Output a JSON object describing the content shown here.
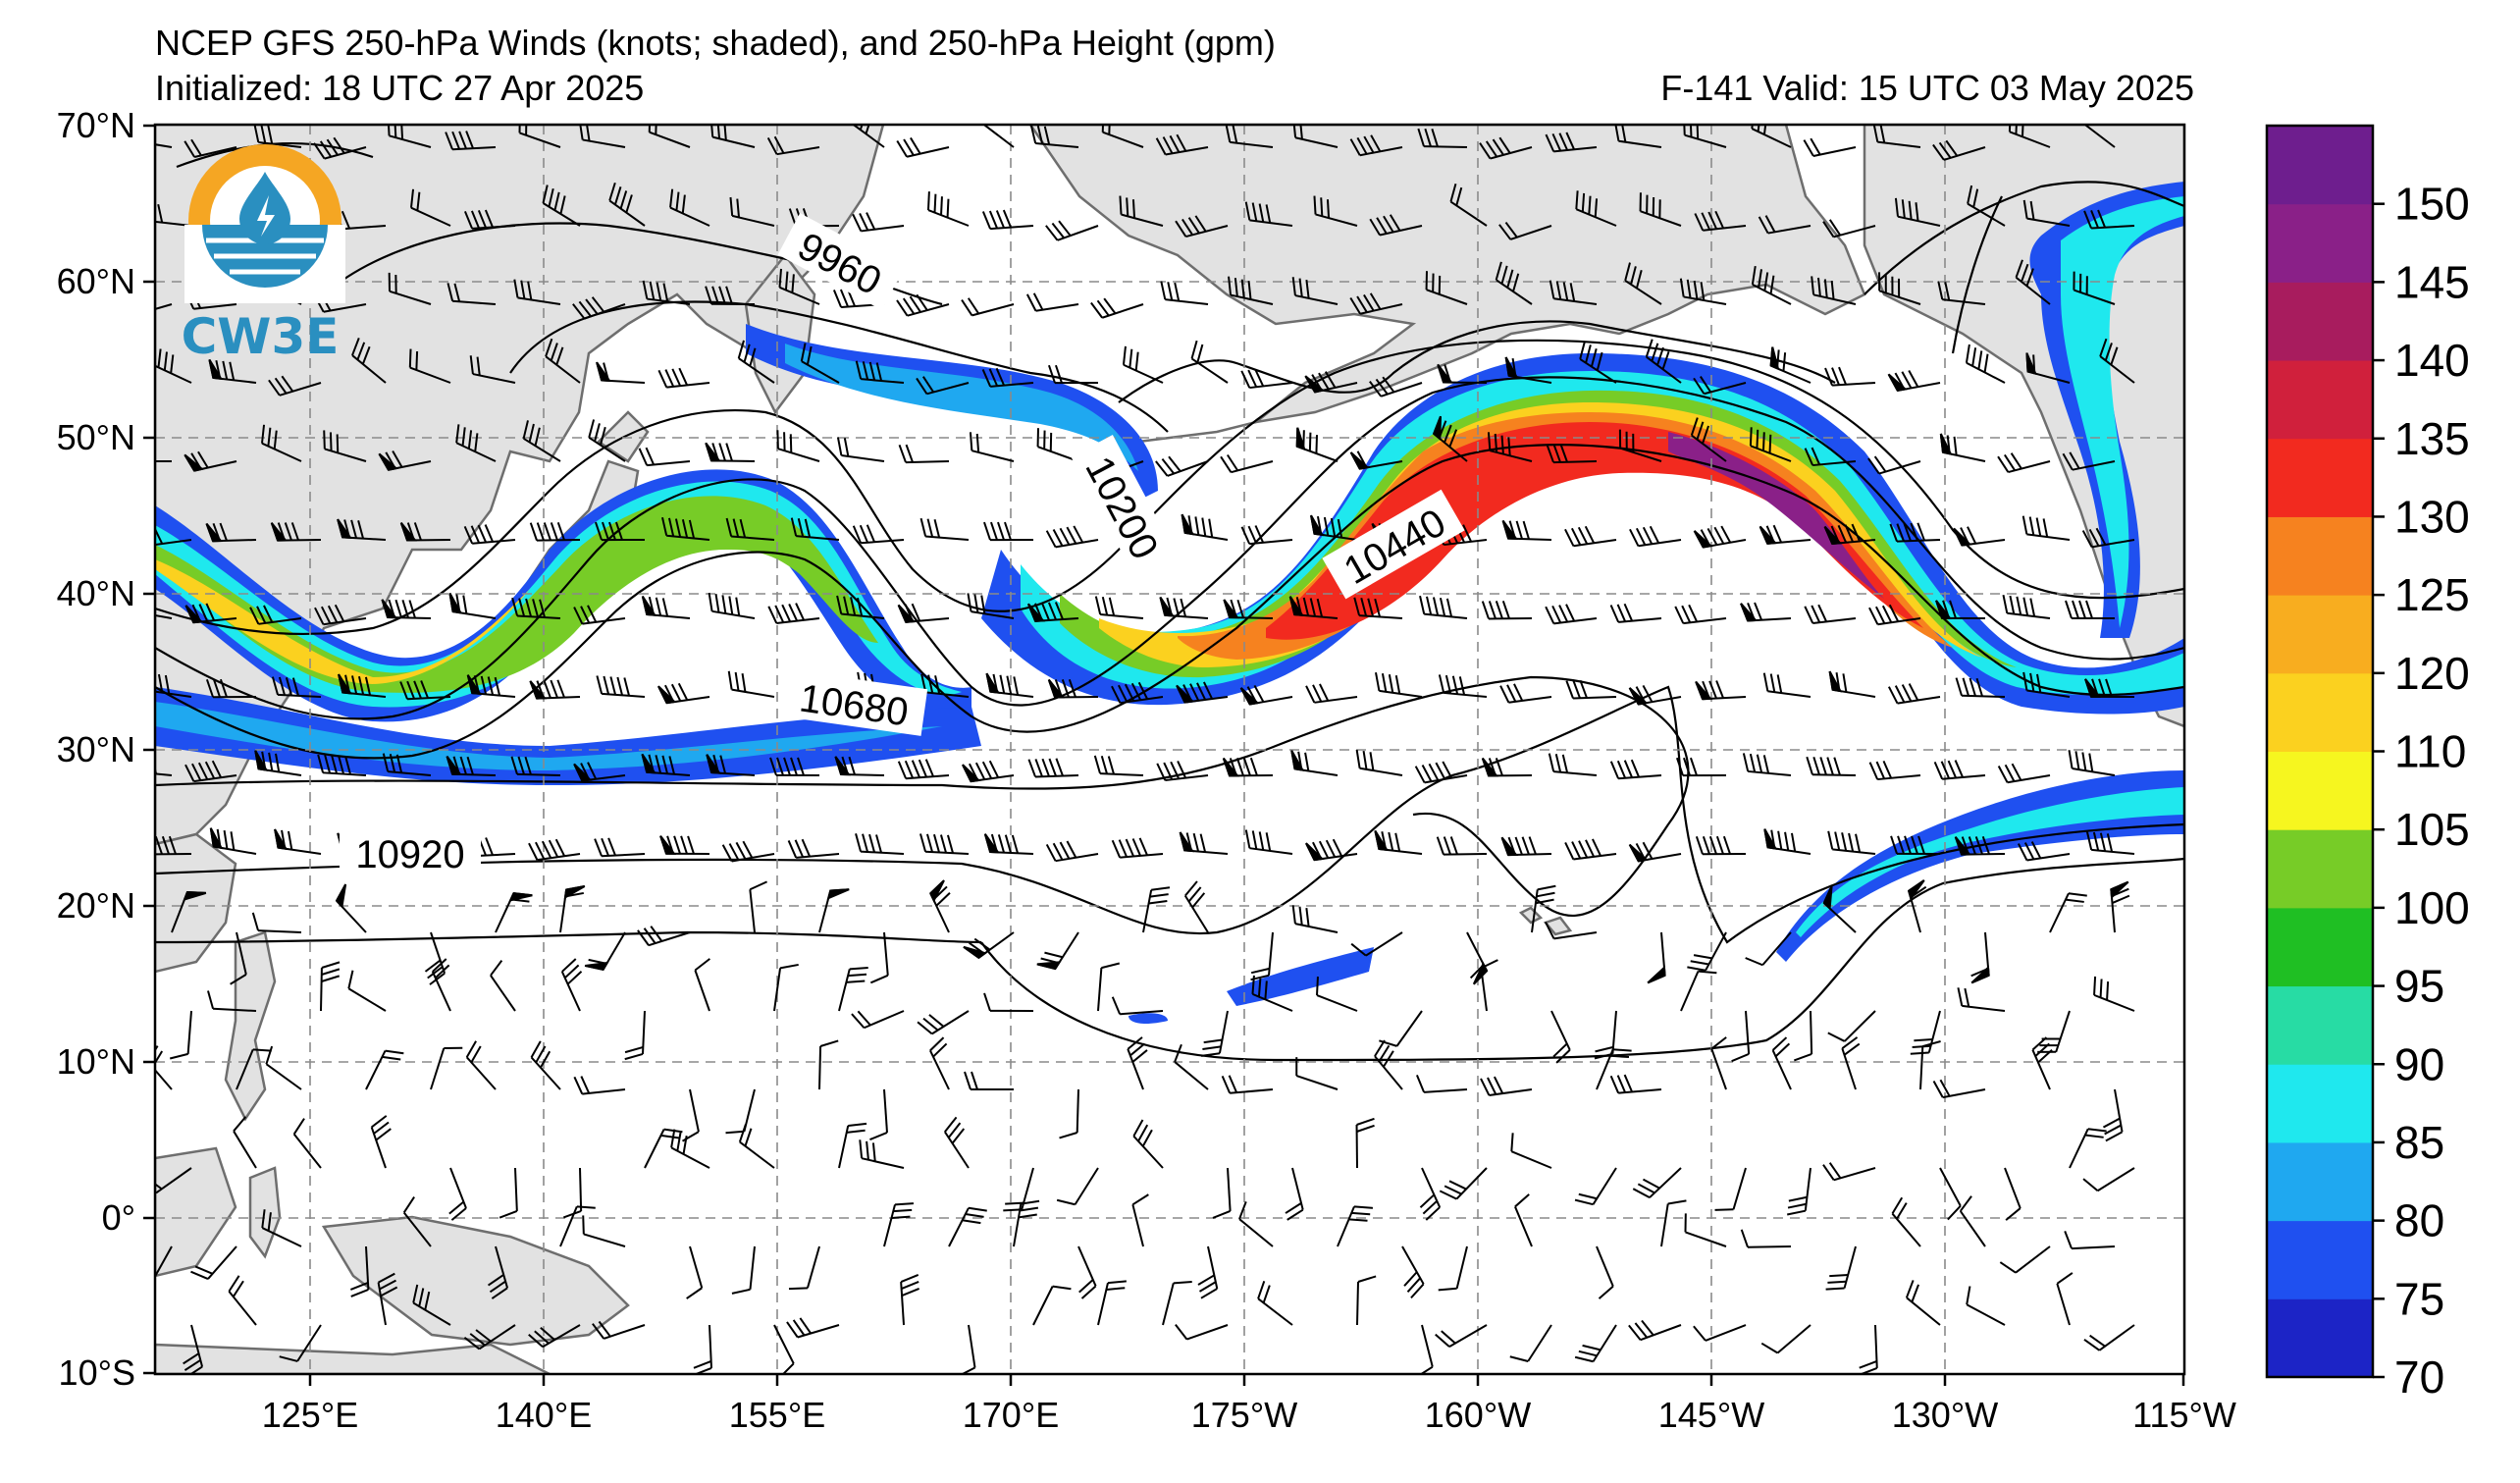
{
  "header": {
    "title": "NCEP GFS 250-hPa Winds (knots; shaded), and 250-hPa Height (gpm)",
    "initialized": "Initialized: 18 UTC 27 Apr 2025",
    "valid": "F-141  Valid: 15 UTC 03 May 2025"
  },
  "logo": {
    "text": "CW3E"
  },
  "map": {
    "lat_labels": [
      "70°N",
      "60°N",
      "50°N",
      "40°N",
      "30°N",
      "20°N",
      "10°N",
      "0°",
      "10°S"
    ],
    "lon_labels": [
      "125°E",
      "140°E",
      "155°E",
      "170°E",
      "175°W",
      "160°W",
      "145°W",
      "130°W",
      "115°W"
    ],
    "contour_labels": [
      "9960",
      "10200",
      "10440",
      "10680",
      "10920"
    ],
    "colors": {
      "land": "#e2e2e2",
      "coast": "#6e6e6e",
      "grid": "#8a8a8a"
    }
  },
  "colorbar": {
    "labels": [
      "70",
      "75",
      "80",
      "85",
      "90",
      "95",
      "100",
      "105",
      "110",
      "120",
      "125",
      "130",
      "135",
      "140",
      "145",
      "150"
    ],
    "colors": [
      "#1c24c6",
      "#1f50f0",
      "#1fa8f0",
      "#1fe8ee",
      "#27dca4",
      "#1fbf23",
      "#77cc27",
      "#f6f61f",
      "#fbd11f",
      "#f8ad1f",
      "#f6821f",
      "#f22a1f",
      "#d0203c",
      "#a81c5e",
      "#8a2088",
      "#6e1e8e"
    ]
  }
}
